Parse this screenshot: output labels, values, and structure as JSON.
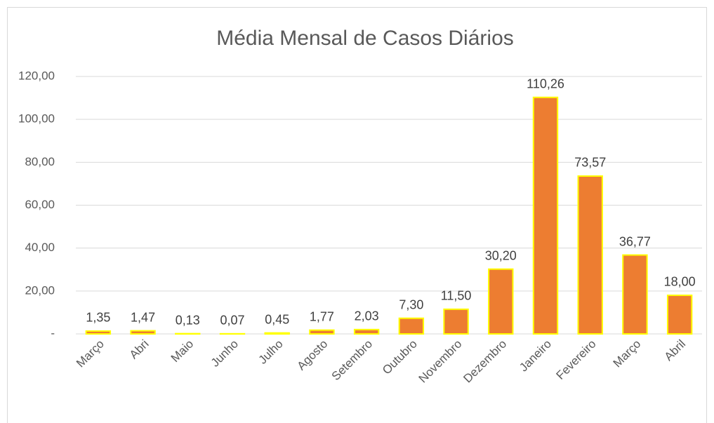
{
  "chart_data": {
    "type": "bar",
    "title": "Média Mensal de Casos Diários",
    "categories": [
      "Março",
      "Abri",
      "Maio",
      "Junho",
      "Julho",
      "Agosto",
      "Setembro",
      "Outubro",
      "Novembro",
      "Dezembro",
      "Janeiro",
      "Fevereiro",
      "Março",
      "Abril"
    ],
    "values": [
      1.35,
      1.47,
      0.13,
      0.07,
      0.45,
      1.77,
      2.03,
      7.3,
      11.5,
      30.2,
      110.26,
      73.57,
      36.77,
      18.0
    ],
    "value_labels": [
      "1,35",
      "1,47",
      "0,13",
      "0,07",
      "0,45",
      "1,77",
      "2,03",
      "7,30",
      "11,50",
      "30,20",
      "110,26",
      "73,57",
      "36,77",
      "18,00"
    ],
    "color": "#ed7d31",
    "edge_color": "#ffff00",
    "ylim": [
      0,
      120
    ],
    "yticks": [
      {
        "value": 0,
        "label": "-"
      },
      {
        "value": 20,
        "label": "20,00"
      },
      {
        "value": 40,
        "label": "40,00"
      },
      {
        "value": 60,
        "label": "60,00"
      },
      {
        "value": 80,
        "label": "80,00"
      },
      {
        "value": 100,
        "label": "100,00"
      },
      {
        "value": 120,
        "label": "120,00"
      }
    ],
    "grid": true
  }
}
